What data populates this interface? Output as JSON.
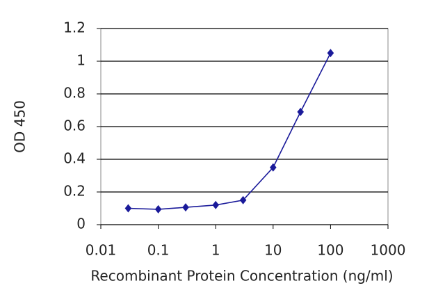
{
  "chart_data": {
    "type": "line",
    "x_label": "Recombinant Protein Concentration (ng/ml)",
    "y_label": "OD 450",
    "x": [
      0.03,
      0.1,
      0.3,
      1,
      3,
      10,
      30,
      100
    ],
    "series": [
      {
        "color": "#1a1a9a",
        "values": [
          0.1,
          0.094,
          0.106,
          0.12,
          0.15,
          0.35,
          0.69,
          1.05
        ]
      }
    ],
    "xscale": "log",
    "xlim": [
      0.01,
      1000
    ],
    "xticks": [
      0.01,
      0.1,
      1,
      10,
      100,
      1000
    ],
    "ylim": [
      0,
      1.2
    ],
    "yticks": [
      0,
      0.2,
      0.4,
      0.6,
      0.8,
      1,
      1.2
    ],
    "grid": true,
    "marker": "diamond"
  }
}
